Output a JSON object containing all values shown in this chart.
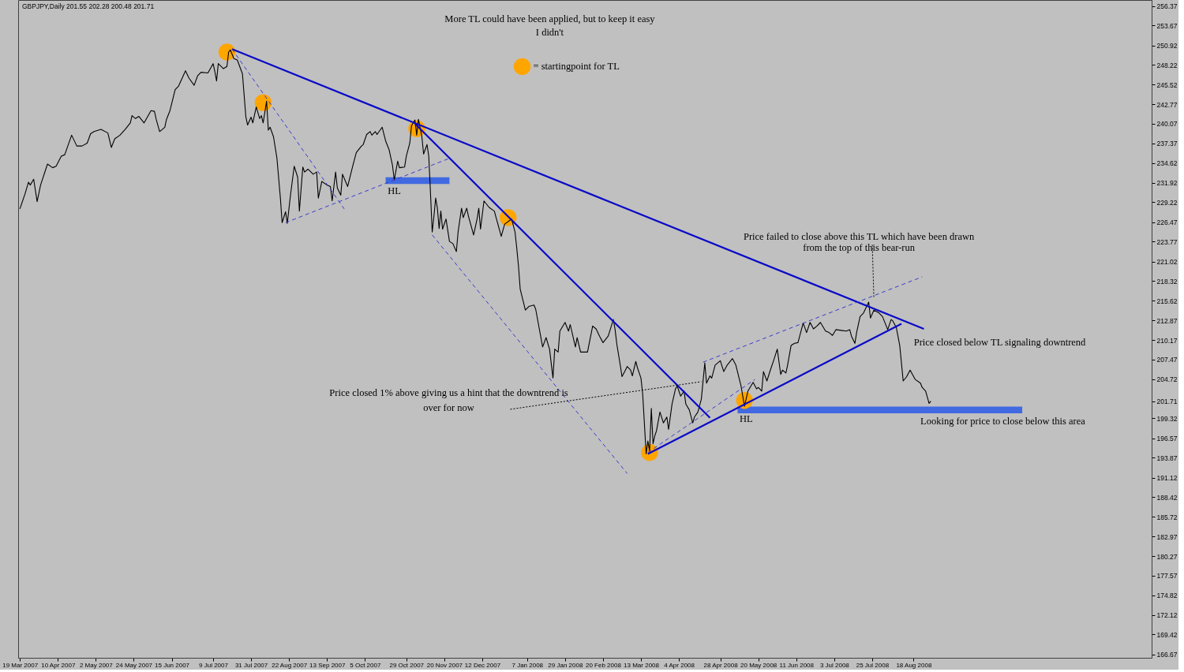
{
  "chart_data": {
    "type": "line",
    "title": "GBPJPY,Daily 201.55 202.28 200.48 201.71",
    "xlim": [
      "2007-03-18",
      "2009-01-03"
    ],
    "ylim": [
      166.2,
      257.2
    ],
    "xticks": [
      {
        "value": "2007-03-19",
        "label": "19 Mar 2007"
      },
      {
        "value": "2007-04-10",
        "label": "10 Apr 2007"
      },
      {
        "value": "2007-05-02",
        "label": "2 May 2007"
      },
      {
        "value": "2007-05-24",
        "label": "24 May 2007"
      },
      {
        "value": "2007-06-15",
        "label": "15 Jun 2007"
      },
      {
        "value": "2007-07-09",
        "label": "9 Jul 2007"
      },
      {
        "value": "2007-07-31",
        "label": "31 Jul 2007"
      },
      {
        "value": "2007-08-22",
        "label": "22 Aug 2007"
      },
      {
        "value": "2007-09-13",
        "label": "13 Sep 2007"
      },
      {
        "value": "2007-10-05",
        "label": "5 Oct 2007"
      },
      {
        "value": "2007-10-29",
        "label": "29 Oct 2007"
      },
      {
        "value": "2007-11-20",
        "label": "20 Nov 2007"
      },
      {
        "value": "2007-12-12",
        "label": "12 Dec 2007"
      },
      {
        "value": "2008-01-07",
        "label": "7 Jan 2008"
      },
      {
        "value": "2008-01-29",
        "label": "29 Jan 2008"
      },
      {
        "value": "2008-02-20",
        "label": "20 Feb 2008"
      },
      {
        "value": "2008-03-13",
        "label": "13 Mar 2008"
      },
      {
        "value": "2008-04-04",
        "label": "4 Apr 2008"
      },
      {
        "value": "2008-04-28",
        "label": "28 Apr 2008"
      },
      {
        "value": "2008-05-20",
        "label": "20 May 2008"
      },
      {
        "value": "2008-06-11",
        "label": "11 Jun 2008"
      },
      {
        "value": "2008-07-03",
        "label": "3 Jul 2008"
      },
      {
        "value": "2008-07-25",
        "label": "25 Jul 2008"
      },
      {
        "value": "2008-08-18",
        "label": "18 Aug 2008"
      }
    ],
    "yticks": [
      256.37,
      253.67,
      250.92,
      248.22,
      245.52,
      242.77,
      240.07,
      237.37,
      234.62,
      231.92,
      229.22,
      226.47,
      223.77,
      221.02,
      218.32,
      215.62,
      212.87,
      210.17,
      207.47,
      204.72,
      201.71,
      199.32,
      196.57,
      193.87,
      191.12,
      188.42,
      185.72,
      182.97,
      180.27,
      177.57,
      174.82,
      172.12,
      169.42,
      166.67
    ],
    "grid": false,
    "legend": "top",
    "series": [
      {
        "color": "#000000",
        "line_style": "solid",
        "x": [
          "2007-03-19",
          "2007-03-22",
          "2007-03-24",
          "2007-03-25",
          "2007-03-27",
          "2007-03-29",
          "2007-03-31",
          "2007-04-04",
          "2007-04-07",
          "2007-04-09",
          "2007-04-12",
          "2007-04-14",
          "2007-04-18",
          "2007-04-21",
          "2007-04-24",
          "2007-04-27",
          "2007-04-29",
          "2007-05-01",
          "2007-05-05",
          "2007-05-09",
          "2007-05-11",
          "2007-05-13",
          "2007-05-16",
          "2007-05-19",
          "2007-05-22",
          "2007-05-23",
          "2007-05-25",
          "2007-05-27",
          "2007-05-30",
          "2007-06-03",
          "2007-06-05",
          "2007-06-06",
          "2007-06-08",
          "2007-06-11",
          "2007-06-12",
          "2007-06-14",
          "2007-06-17",
          "2007-06-19",
          "2007-06-23",
          "2007-06-25",
          "2007-06-28",
          "2007-06-30",
          "2007-07-02",
          "2007-07-06",
          "2007-07-09",
          "2007-07-10",
          "2007-07-11",
          "2007-07-12",
          "2007-07-15",
          "2007-07-17",
          "2007-07-18",
          "2007-07-19",
          "2007-07-21",
          "2007-07-23",
          "2007-07-26",
          "2007-07-28",
          "2007-07-29",
          "2007-07-31",
          "2007-08-01",
          "2007-08-03",
          "2007-08-05",
          "2007-08-06",
          "2007-08-07",
          "2007-08-09",
          "2007-08-10",
          "2007-08-11",
          "2007-08-13",
          "2007-08-15",
          "2007-08-17",
          "2007-08-18",
          "2007-08-20",
          "2007-08-21",
          "2007-08-23",
          "2007-08-25",
          "2007-08-27",
          "2007-08-28",
          "2007-08-30",
          "2007-08-31",
          "2007-09-02",
          "2007-09-05",
          "2007-09-07",
          "2007-09-08",
          "2007-09-10",
          "2007-09-13",
          "2007-09-15",
          "2007-09-16",
          "2007-09-18",
          "2007-09-19",
          "2007-09-21",
          "2007-09-22",
          "2007-09-25",
          "2007-09-28",
          "2007-09-30",
          "2007-10-03",
          "2007-10-04",
          "2007-10-06",
          "2007-10-08",
          "2007-10-09",
          "2007-10-11",
          "2007-10-12",
          "2007-10-15",
          "2007-10-17",
          "2007-10-19",
          "2007-10-21",
          "2007-10-22",
          "2007-10-24",
          "2007-10-25",
          "2007-10-28",
          "2007-10-29",
          "2007-10-31",
          "2007-11-01",
          "2007-11-03",
          "2007-11-04",
          "2007-11-05",
          "2007-11-07",
          "2007-11-08",
          "2007-11-10",
          "2007-11-11",
          "2007-11-12",
          "2007-11-13",
          "2007-11-14",
          "2007-11-15",
          "2007-11-16",
          "2007-11-17",
          "2007-11-18",
          "2007-11-19",
          "2007-11-21",
          "2007-11-23",
          "2007-11-25",
          "2007-11-27",
          "2007-11-28",
          "2007-11-30",
          "2007-12-01",
          "2007-12-03",
          "2007-12-04",
          "2007-12-07",
          "2007-12-09",
          "2007-12-10",
          "2007-12-11",
          "2007-12-13",
          "2007-12-16",
          "2007-12-19",
          "2007-12-23",
          "2007-12-25",
          "2007-12-29",
          "2007-12-31",
          "2008-01-01",
          "2008-01-02",
          "2008-01-03",
          "2008-01-06",
          "2008-01-08",
          "2008-01-11",
          "2008-01-12",
          "2008-01-16",
          "2008-01-18",
          "2008-01-20",
          "2008-01-22",
          "2008-01-23",
          "2008-01-25",
          "2008-01-26",
          "2008-01-29",
          "2008-01-31",
          "2008-02-01",
          "2008-02-04",
          "2008-02-05",
          "2008-02-07",
          "2008-02-11",
          "2008-02-14",
          "2008-02-16",
          "2008-02-18",
          "2008-02-20",
          "2008-02-23",
          "2008-02-26",
          "2008-02-27",
          "2008-02-28",
          "2008-03-01",
          "2008-03-02",
          "2008-03-04",
          "2008-03-05",
          "2008-03-07",
          "2008-03-08",
          "2008-03-10",
          "2008-03-11",
          "2008-03-13",
          "2008-03-14",
          "2008-03-16",
          "2008-03-17",
          "2008-03-18",
          "2008-03-19",
          "2008-03-20",
          "2008-03-21",
          "2008-03-22",
          "2008-03-24",
          "2008-03-26",
          "2008-03-28",
          "2008-03-29",
          "2008-03-31",
          "2008-04-02",
          "2008-04-03",
          "2008-04-05",
          "2008-04-07",
          "2008-04-08",
          "2008-04-10",
          "2008-04-12",
          "2008-04-13",
          "2008-04-15",
          "2008-04-17",
          "2008-04-19",
          "2008-04-20",
          "2008-04-22",
          "2008-04-23",
          "2008-04-25",
          "2008-04-28",
          "2008-04-30",
          "2008-05-02",
          "2008-05-05",
          "2008-05-07",
          "2008-05-10",
          "2008-05-12",
          "2008-05-14",
          "2008-05-17",
          "2008-05-19",
          "2008-05-20",
          "2008-05-22",
          "2008-05-23",
          "2008-05-25",
          "2008-05-27",
          "2008-05-29",
          "2008-05-31",
          "2008-06-02",
          "2008-06-03",
          "2008-06-05",
          "2008-06-06",
          "2008-06-08",
          "2008-06-10",
          "2008-06-12",
          "2008-06-13",
          "2008-06-15",
          "2008-06-17",
          "2008-06-19",
          "2008-06-21",
          "2008-06-23",
          "2008-06-25",
          "2008-06-28",
          "2008-06-30",
          "2008-07-02",
          "2008-07-04",
          "2008-07-07",
          "2008-07-10",
          "2008-07-12",
          "2008-07-13",
          "2008-07-15",
          "2008-07-16",
          "2008-07-18",
          "2008-07-20",
          "2008-07-23",
          "2008-07-24",
          "2008-07-26",
          "2008-07-29",
          "2008-07-31",
          "2008-08-03",
          "2008-08-05",
          "2008-08-06",
          "2008-08-08",
          "2008-08-10",
          "2008-08-12",
          "2008-08-14",
          "2008-08-16",
          "2008-08-19",
          "2008-08-22",
          "2008-08-23",
          "2008-08-25",
          "2008-08-27",
          "2008-08-28"
        ],
        "values": [
          228.3,
          230.4,
          232.0,
          231.6,
          232.4,
          229.3,
          231.6,
          234.5,
          234.0,
          234.2,
          235.6,
          235.8,
          238.5,
          237.0,
          237.0,
          237.4,
          238.7,
          239.0,
          239.3,
          238.8,
          236.8,
          238.0,
          238.5,
          239.3,
          240.2,
          241.2,
          240.8,
          241.1,
          240.2,
          241.9,
          241.8,
          240.7,
          239.0,
          239.6,
          240.7,
          241.9,
          244.8,
          245.3,
          247.4,
          246.4,
          245.4,
          246.7,
          247.2,
          247.1,
          248.4,
          247.3,
          246.0,
          248.4,
          247.7,
          248.0,
          250.0,
          250.3,
          249.1,
          248.9,
          247.0,
          241.0,
          239.9,
          241.0,
          240.2,
          242.4,
          240.8,
          241.2,
          240.2,
          243.2,
          239.2,
          239.6,
          238.3,
          235.3,
          229.8,
          226.4,
          227.9,
          226.3,
          230.5,
          234.2,
          232.7,
          228.0,
          234.1,
          233.4,
          233.8,
          233.1,
          233.4,
          229.8,
          232.1,
          231.6,
          231.4,
          229.4,
          233.4,
          231.2,
          230.2,
          233.1,
          231.4,
          234.3,
          236.1,
          237.0,
          237.2,
          238.6,
          239.0,
          238.5,
          239.0,
          238.6,
          239.6,
          237.7,
          236.5,
          234.3,
          232.3,
          234.9,
          234.0,
          234.1,
          235.6,
          237.4,
          239.8,
          240.6,
          238.5,
          240.7,
          238.3,
          235.9,
          237.2,
          235.6,
          230.5,
          225.1,
          227.3,
          229.8,
          228.4,
          225.6,
          228.0,
          225.5,
          226.9,
          223.8,
          223.5,
          222.4,
          225.1,
          228.4,
          227.1,
          228.4,
          227.3,
          224.7,
          226.9,
          228.4,
          225.5,
          229.4,
          228.5,
          228.0,
          224.5,
          226.2,
          226.9,
          225.1,
          222.9,
          220.4,
          217.2,
          214.3,
          214.8,
          215.0,
          214.4,
          209.2,
          210.5,
          208.9,
          204.9,
          208.9,
          208.5,
          211.4,
          212.6,
          211.4,
          212.3,
          209.2,
          210.5,
          208.5,
          208.5,
          212.1,
          211.7,
          210.7,
          209.8,
          210.7,
          213.0,
          211.6,
          209.6,
          206.7,
          205.1,
          206.0,
          206.5,
          206.0,
          205.2,
          207.2,
          206.3,
          204.9,
          202.7,
          194.4,
          196.2,
          194.8,
          200.7,
          195.8,
          196.9,
          197.6,
          200.2,
          198.7,
          199.5,
          197.8,
          201.3,
          203.4,
          203.8,
          202.4,
          203.1,
          201.3,
          200.5,
          198.7,
          199.5,
          200.2,
          202.0,
          207.0,
          204.2,
          205.2,
          204.9,
          206.7,
          207.3,
          205.8,
          206.7,
          207.6,
          206.7,
          203.8,
          201.0,
          203.1,
          204.3,
          203.4,
          203.6,
          203.1,
          205.8,
          204.5,
          206.0,
          207.4,
          208.9,
          205.4,
          206.0,
          205.6,
          206.7,
          209.4,
          209.7,
          209.8,
          210.7,
          212.5,
          211.2,
          212.6,
          211.7,
          212.1,
          212.6,
          211.4,
          211.2,
          210.8,
          211.6,
          211.5,
          211.4,
          211.6,
          210.7,
          209.7,
          211.2,
          213.4,
          213.9,
          215.4,
          213.2,
          214.3,
          213.9,
          213.4,
          211.6,
          213.0,
          212.8,
          211.9,
          209.4,
          204.5,
          205.1,
          206.0,
          204.7,
          204.2,
          203.6,
          203.1,
          201.4,
          201.7
        ]
      },
      {
        "color": "#4169e1",
        "line_style": "solid",
        "x": [
          "2007-10-17",
          "2007-11-23"
        ],
        "values": [
          232.2,
          232.2
        ]
      },
      {
        "color": "#4169e1",
        "line_style": "solid",
        "x": [
          "2008-05-08",
          "2008-10-20"
        ],
        "values": [
          200.5,
          200.5
        ]
      },
      {
        "type": "scatter",
        "name": "= startingpoint for TL",
        "color": "#ffa500",
        "marker": "circle",
        "x": [
          "2007-07-17",
          "2007-08-07",
          "2007-11-04",
          "2007-12-27",
          "2008-03-18",
          "2008-05-12"
        ],
        "values": [
          250.0,
          243.0,
          239.4,
          227.1,
          194.6,
          201.8
        ]
      },
      {
        "color": "#0a0ac8",
        "line_style": "solid",
        "x": [
          "2007-07-20",
          "2008-08-24"
        ],
        "values": [
          250.4,
          211.7
        ]
      },
      {
        "color": "#0a0ac8",
        "line_style": "solid",
        "x": [
          "2007-11-03",
          "2008-04-22"
        ],
        "values": [
          240.1,
          199.4
        ]
      },
      {
        "color": "#0a0ac8",
        "line_style": "solid",
        "x": [
          "2008-03-17",
          "2008-08-11"
        ],
        "values": [
          194.4,
          212.4
        ]
      },
      {
        "color": "#3a3ad0",
        "line_style": "dashed",
        "x": [
          "2007-07-20",
          "2007-09-23"
        ],
        "values": [
          250.4,
          228.3
        ]
      },
      {
        "color": "#3a3ad0",
        "line_style": "dashed",
        "x": [
          "2007-08-20",
          "2007-11-23"
        ],
        "values": [
          226.4,
          235.3
        ]
      },
      {
        "color": "#3a3ad0",
        "line_style": "dashed",
        "x": [
          "2007-11-13",
          "2008-03-05"
        ],
        "values": [
          224.7,
          191.7
        ]
      },
      {
        "color": "#3a3ad0",
        "line_style": "dashed",
        "x": [
          "2008-04-18",
          "2008-08-23"
        ],
        "values": [
          207.1,
          218.9
        ]
      },
      {
        "color": "#3a3ad0",
        "line_style": "dashed",
        "x": [
          "2008-03-17",
          "2008-05-18"
        ],
        "values": [
          194.6,
          204.7
        ]
      }
    ],
    "annotations": [
      "More TL could have been applied, but to keep it easy\nI didn't",
      {
        "text": "HL",
        "x": "2007-10-22",
        "y": 231.8
      },
      {
        "text": "Price failed to close above this TL which have been drawn\nfrom the top of this bear-run",
        "x": "2008-07-26",
        "y": 215.9
      },
      {
        "text": "Price closed below TL signaling downtrend",
        "x": "2008-08-09",
        "y": 209.9
      },
      {
        "text": "Price closed 1% above giving us a hint that the downtrend is\nover for now",
        "x": "2008-04-17",
        "y": 204.4
      },
      {
        "text": "HL",
        "x": "2008-05-13",
        "y": 200.2
      },
      {
        "text": "Looking for price to close below this area",
        "x": "2008-08-22",
        "y": 200.2
      }
    ]
  }
}
